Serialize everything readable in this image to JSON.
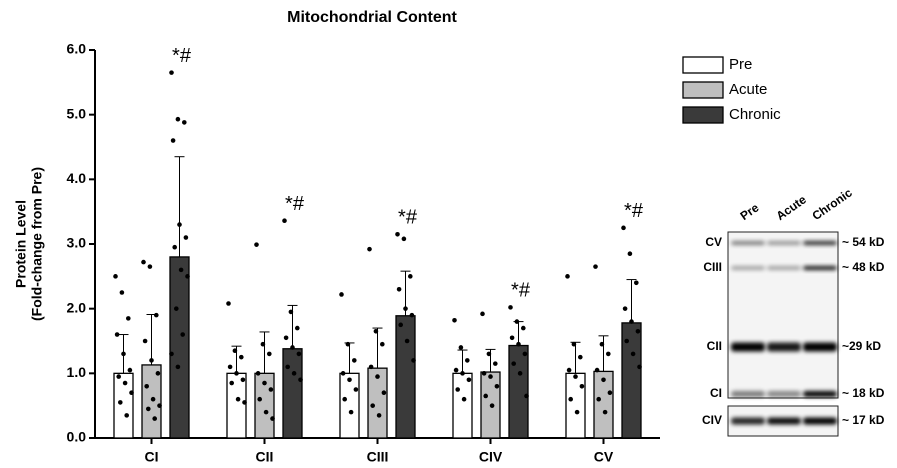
{
  "chart_data": {
    "type": "bar",
    "title": "Mitochondrial Content",
    "y_label": [
      "Protein Level",
      "(Fold-change from Pre)"
    ],
    "categories": [
      "CI",
      "CII",
      "CIII",
      "CIV",
      "CV"
    ],
    "series": [
      {
        "name": "Pre",
        "color": "#ffffff",
        "values": [
          1.0,
          1.0,
          1.0,
          1.0,
          1.0
        ],
        "errors": [
          0.6,
          0.42,
          0.47,
          0.36,
          0.48
        ],
        "points": [
          [
            2.5,
            2.25,
            1.85,
            1.6,
            1.3,
            1.05,
            0.95,
            0.85,
            0.7,
            0.55,
            0.35
          ],
          [
            2.08,
            1.35,
            1.25,
            1.1,
            1.0,
            0.9,
            0.85,
            0.6,
            0.55
          ],
          [
            2.22,
            1.45,
            1.2,
            1.0,
            0.9,
            0.75,
            0.6,
            0.4
          ],
          [
            1.82,
            1.4,
            1.2,
            1.05,
            1.0,
            0.9,
            0.75,
            0.6
          ],
          [
            2.5,
            1.45,
            1.25,
            1.05,
            0.95,
            0.8,
            0.6,
            0.4
          ]
        ]
      },
      {
        "name": "Acute",
        "color": "#bfbfbf",
        "values": [
          1.13,
          1.0,
          1.08,
          1.02,
          1.03
        ],
        "errors": [
          0.78,
          0.64,
          0.62,
          0.35,
          0.55
        ],
        "points": [
          [
            2.72,
            2.65,
            1.9,
            1.5,
            1.2,
            1.0,
            0.8,
            0.6,
            0.5,
            0.45,
            0.3
          ],
          [
            2.99,
            1.45,
            1.3,
            1.0,
            0.85,
            0.75,
            0.6,
            0.4,
            0.3
          ],
          [
            2.92,
            1.65,
            1.45,
            1.1,
            0.95,
            0.7,
            0.5,
            0.35
          ],
          [
            1.92,
            1.3,
            1.15,
            1.0,
            0.95,
            0.8,
            0.65,
            0.5
          ],
          [
            2.65,
            1.45,
            1.3,
            1.05,
            0.9,
            0.7,
            0.6,
            0.4
          ]
        ]
      },
      {
        "name": "Chronic",
        "color": "#3a3a3a",
        "values": [
          2.8,
          1.38,
          1.89,
          1.43,
          1.78
        ],
        "errors": [
          1.55,
          0.67,
          0.69,
          0.37,
          0.67
        ],
        "points": [
          [
            5.65,
            4.93,
            4.88,
            4.6,
            3.3,
            3.1,
            2.95,
            2.6,
            2.5,
            2.0,
            1.6,
            1.3,
            1.1
          ],
          [
            3.36,
            1.95,
            1.7,
            1.55,
            1.4,
            1.3,
            1.1,
            1.0,
            0.9
          ],
          [
            3.15,
            3.08,
            2.5,
            2.3,
            2.0,
            1.9,
            1.75,
            1.5,
            1.2
          ],
          [
            2.02,
            1.8,
            1.7,
            1.55,
            1.45,
            1.3,
            1.15,
            1.0,
            0.65
          ],
          [
            3.25,
            2.85,
            2.4,
            2.0,
            1.8,
            1.65,
            1.5,
            1.3,
            1.1
          ]
        ]
      }
    ],
    "annotations": [
      "*#",
      "*#",
      "*#",
      "*#",
      "*#"
    ],
    "ylim": [
      0,
      6
    ],
    "yticks": [
      {
        "value": 0,
        "label": "0.0"
      },
      {
        "value": 1,
        "label": "1.0"
      },
      {
        "value": 2,
        "label": "2.0"
      },
      {
        "value": 3,
        "label": "3.0"
      },
      {
        "value": 4,
        "label": "4.0"
      },
      {
        "value": 5,
        "label": "5.0"
      },
      {
        "value": 6,
        "label": "6.0"
      }
    ],
    "grid": false,
    "legend": "top-right"
  },
  "blot": {
    "lanes": [
      "Pre",
      "Acute",
      "Chronic"
    ],
    "bands": [
      {
        "name": "CV",
        "size": "~ 54 kD"
      },
      {
        "name": "CIII",
        "size": "~ 48 kD"
      },
      {
        "name": "CII",
        "size": "~29 kD"
      },
      {
        "name": "CI",
        "size": "~ 18 kD"
      },
      {
        "name": "CIV",
        "size": "~ 17 kD"
      }
    ]
  }
}
